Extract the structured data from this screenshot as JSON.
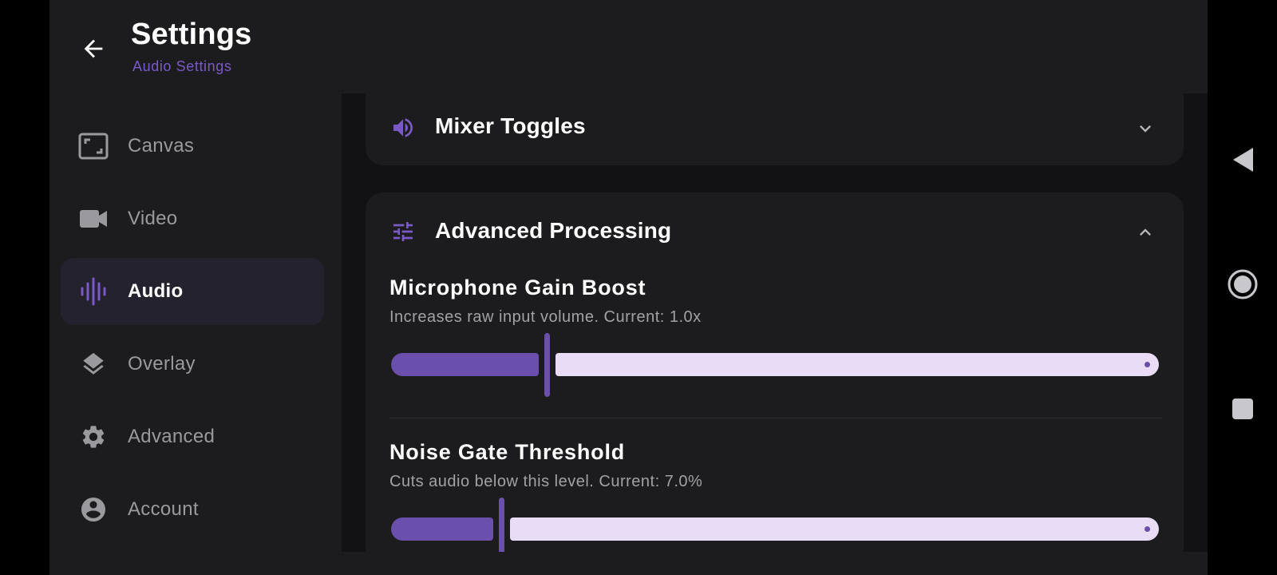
{
  "header": {
    "title": "Settings",
    "subtitle": "Audio Settings"
  },
  "sidebar": {
    "items": [
      {
        "label": "Canvas",
        "icon": "canvas-icon",
        "active": false
      },
      {
        "label": "Video",
        "icon": "video-camera-icon",
        "active": false
      },
      {
        "label": "Audio",
        "icon": "audio-waveform-icon",
        "active": true
      },
      {
        "label": "Overlay",
        "icon": "layers-icon",
        "active": false
      },
      {
        "label": "Advanced",
        "icon": "gear-icon",
        "active": false
      },
      {
        "label": "Account",
        "icon": "account-icon",
        "active": false
      }
    ]
  },
  "sections": {
    "mixer": {
      "title": "Mixer Toggles",
      "icon": "speaker-icon",
      "expanded": false
    },
    "advanced": {
      "title": "Advanced Processing",
      "icon": "sliders-icon",
      "expanded": true,
      "settings": [
        {
          "title": "Microphone Gain Boost",
          "description": "Increases raw input volume. Current: 1.0x",
          "slider_fraction": 0.2
        },
        {
          "title": "Noise Gate Threshold",
          "description": "Cuts audio below this level. Current: 7.0%",
          "slider_fraction": 0.14
        }
      ]
    }
  },
  "colors": {
    "accent": "#6a4fac",
    "subtitle": "#7a5ac8",
    "track_inactive": "#e8dcf6",
    "background": "#1c1c1e",
    "content_background": "#121214",
    "active_nav": "#25222f"
  },
  "system_nav": {
    "buttons": [
      "back-triangle-icon",
      "home-circle-icon",
      "recents-square-icon"
    ]
  }
}
